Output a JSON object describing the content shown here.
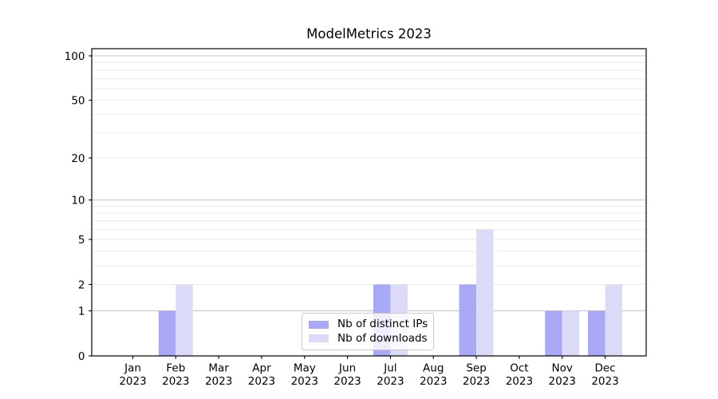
{
  "figure": {
    "background": "#ffffff"
  },
  "chart_data": {
    "type": "bar",
    "title": "ModelMetrics 2023",
    "categories": [
      "Jan",
      "Feb",
      "Mar",
      "Apr",
      "May",
      "Jun",
      "Jul",
      "Aug",
      "Sep",
      "Oct",
      "Nov",
      "Dec"
    ],
    "year_label": "2023",
    "series": [
      {
        "name": "Nb of distinct IPs",
        "color": "#a8a8f6",
        "values": [
          0,
          1,
          0,
          0,
          0,
          0,
          2,
          0,
          2,
          0,
          1,
          1
        ]
      },
      {
        "name": "Nb of downloads",
        "color": "#dbdbf8",
        "values": [
          0,
          2,
          0,
          0,
          0,
          0,
          2,
          0,
          6,
          0,
          1,
          2
        ]
      }
    ],
    "yscale": "log1p",
    "yticks": [
      0,
      1,
      2,
      5,
      10,
      20,
      50,
      100
    ],
    "ytick_labels": [
      "0",
      "1",
      "2",
      "5",
      "10",
      "20",
      "50",
      "100"
    ],
    "ylim": [
      0,
      112
    ],
    "major_gridlines": [
      1,
      10,
      100
    ],
    "minor_gridlines": [
      2,
      3,
      4,
      5,
      6,
      7,
      8,
      9,
      20,
      30,
      40,
      50,
      60,
      70,
      80,
      90
    ],
    "grid": "horizontal",
    "legend_position": "lower center",
    "colors": {
      "major_grid": "#c3c3c3",
      "minor_grid": "#e9e9e9",
      "axis": "#000000",
      "tick_text": "#000000"
    }
  }
}
